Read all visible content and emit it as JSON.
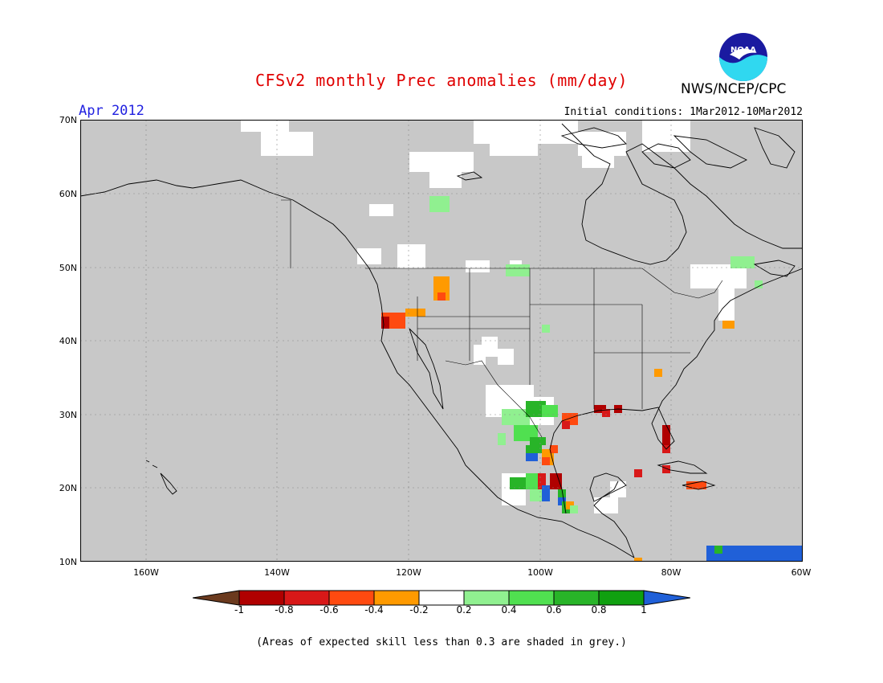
{
  "header": {
    "title": "CFSv2 monthly Prec anomalies (mm/day)",
    "agency": "NWS/NCEP/CPC",
    "month": "Apr 2012",
    "initial_conditions": "Initial conditions: 1Mar2012-10Mar2012",
    "logo_icon": "noaa-logo-icon",
    "logo_text": "NOAA"
  },
  "axes": {
    "lat_labels": [
      "70N",
      "60N",
      "50N",
      "40N",
      "30N",
      "20N",
      "10N"
    ],
    "lon_labels": [
      "160W",
      "140W",
      "120W",
      "100W",
      "80W",
      "60W"
    ]
  },
  "colorbar": {
    "labels": [
      "-1",
      "-0.8",
      "-0.6",
      "-0.4",
      "-0.2",
      "0.2",
      "0.4",
      "0.6",
      "0.8",
      "1"
    ],
    "colors": [
      "#6b3a1e",
      "#b00000",
      "#d81818",
      "#ff4a10",
      "#ff9a00",
      "#ffffff",
      "#90f090",
      "#50e050",
      "#28b428",
      "#10a010",
      "#2060d8"
    ]
  },
  "footnote": "(Areas of expected skill less than 0.3 are shaded in grey.)",
  "colors": {
    "title": "#e00000",
    "month": "#2020e0",
    "mask": "#c8c8c8"
  }
}
